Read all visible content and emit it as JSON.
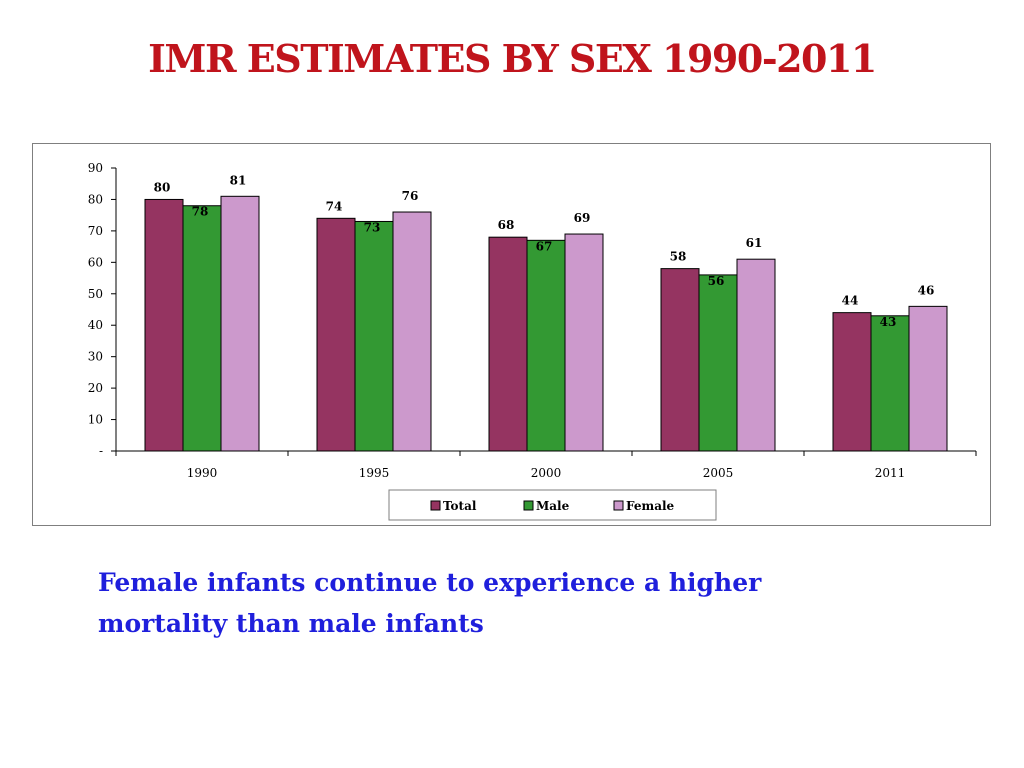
{
  "title": "IMR ESTIMATES BY SEX 1990-2011",
  "caption": {
    "line1": "Female infants continue to experience a higher",
    "line2": "mortality than male infants"
  },
  "chart_data": {
    "type": "bar",
    "title": "",
    "xlabel": "",
    "ylabel": "",
    "categories": [
      "1990",
      "1995",
      "2000",
      "2005",
      "2011"
    ],
    "series": [
      {
        "name": "Total",
        "color": "#953461",
        "values": [
          80,
          74,
          68,
          58,
          44
        ]
      },
      {
        "name": "Male",
        "color": "#339933",
        "values": [
          78,
          73,
          67,
          56,
          43
        ]
      },
      {
        "name": "Female",
        "color": "#cc99cc",
        "values": [
          81,
          76,
          69,
          61,
          46
        ]
      }
    ],
    "ylim": [
      0,
      90
    ],
    "yticks": [
      0,
      10,
      20,
      30,
      40,
      50,
      60,
      70,
      80,
      90
    ],
    "ytick_labels": [
      "-",
      "10",
      "20",
      "30",
      "40",
      "50",
      "60",
      "70",
      "80",
      "90"
    ],
    "grid": false,
    "legend_position": "bottom",
    "data_labels": true
  }
}
